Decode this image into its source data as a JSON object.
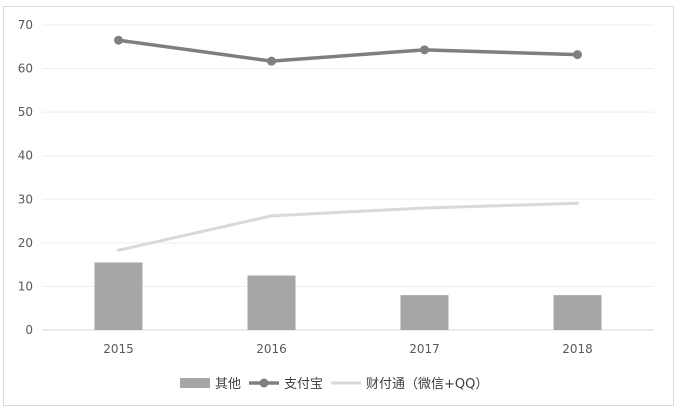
{
  "chart_data": {
    "type": "bar",
    "categories": [
      "2015",
      "2016",
      "2017",
      "2018"
    ],
    "ylim": [
      0,
      70
    ],
    "yticks": [
      0,
      10,
      20,
      30,
      40,
      50,
      60,
      70
    ],
    "grid": true,
    "legend_position": "bottom",
    "series": [
      {
        "name": "其他",
        "type": "bar",
        "color": "#a6a6a6",
        "values": [
          15.5,
          12.5,
          8,
          8
        ]
      },
      {
        "name": "支付宝",
        "type": "line",
        "marker": "circle",
        "color": "#7f7f7f",
        "values": [
          66.5,
          61.7,
          64.3,
          63.2
        ]
      },
      {
        "name": "财付通（微信+QQ）",
        "type": "line",
        "color": "#d9d9d9",
        "values": [
          18.3,
          26.2,
          28,
          29.1
        ]
      }
    ]
  }
}
